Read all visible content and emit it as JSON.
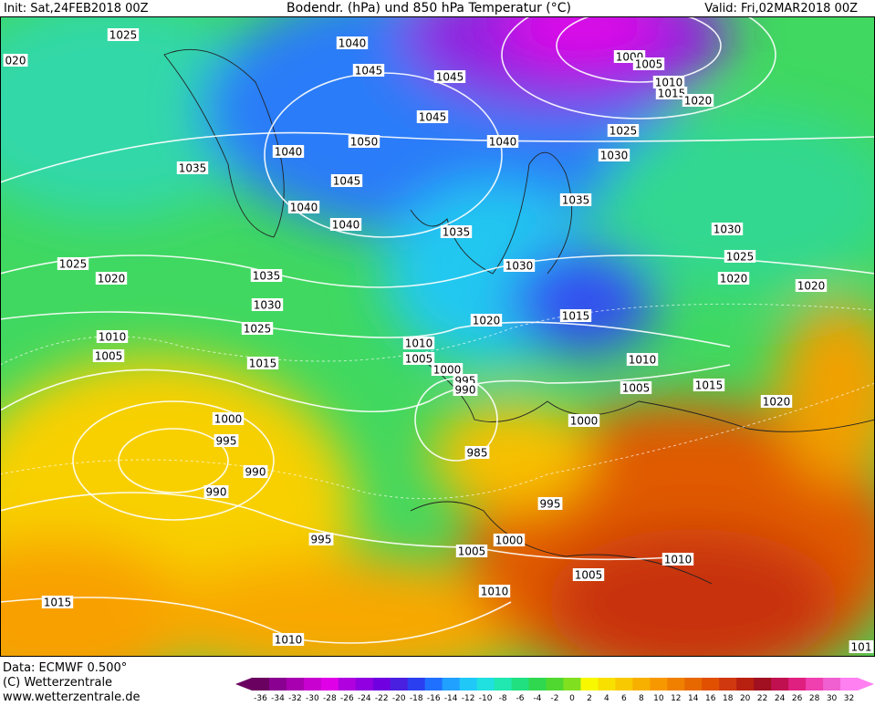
{
  "header": {
    "init": "Init: Sat,24FEB2018 00Z",
    "title": "Bodendr. (hPa) und 850 hPa Temperatur (°C)",
    "valid": "Valid: Fri,02MAR2018 00Z"
  },
  "isobar_labels": [
    "1025",
    "020",
    "1040",
    "1045",
    "1045",
    "1000",
    "1005",
    "1010",
    "1015",
    "1020",
    "1045",
    "1050",
    "1040",
    "1025",
    "1040",
    "1030",
    "1035",
    "1045",
    "1035",
    "1040",
    "1040",
    "1035",
    "1030",
    "1025",
    "1030",
    "1025",
    "1020",
    "1035",
    "1020",
    "1020",
    "1030",
    "1020",
    "1015",
    "1010",
    "1025",
    "1005",
    "1010",
    "1005",
    "1015",
    "1010",
    "1000",
    "995",
    "990",
    "1005",
    "1015",
    "1020",
    "1000",
    "1000",
    "995",
    "985",
    "990",
    "990",
    "995",
    "995",
    "1000",
    "1005",
    "1010",
    "1005",
    "1010",
    "1015",
    "1010",
    "101"
  ],
  "footer": {
    "data": "Data: ECMWF  0.500°",
    "copyright": "(C) Wetterzentrale",
    "url": "www.wetterzentrale.de"
  },
  "colorbar": {
    "labels": [
      -36,
      -34,
      -32,
      -30,
      -28,
      -26,
      -24,
      -22,
      -20,
      -18,
      -16,
      -14,
      -12,
      -10,
      -8,
      -6,
      -4,
      -2,
      0,
      2,
      4,
      6,
      8,
      10,
      12,
      14,
      16,
      18,
      20,
      22,
      24,
      26,
      28,
      30,
      32
    ],
    "colors": [
      "#6a005f",
      "#8a0090",
      "#a800b0",
      "#c800d0",
      "#e000e8",
      "#b000e0",
      "#9000e0",
      "#7000e0",
      "#4a20e0",
      "#2a40f0",
      "#2070ff",
      "#20a0ff",
      "#20c8f8",
      "#20e0e0",
      "#20e8b0",
      "#20e080",
      "#30d850",
      "#50d830",
      "#80e020",
      "#f8f800",
      "#f8e000",
      "#f8c800",
      "#f8b000",
      "#f89800",
      "#f08000",
      "#e86800",
      "#e05000",
      "#d03810",
      "#b82010",
      "#a01020",
      "#c01050",
      "#e02080",
      "#f040b0",
      "#f060d0",
      "#ff80f0"
    ]
  }
}
